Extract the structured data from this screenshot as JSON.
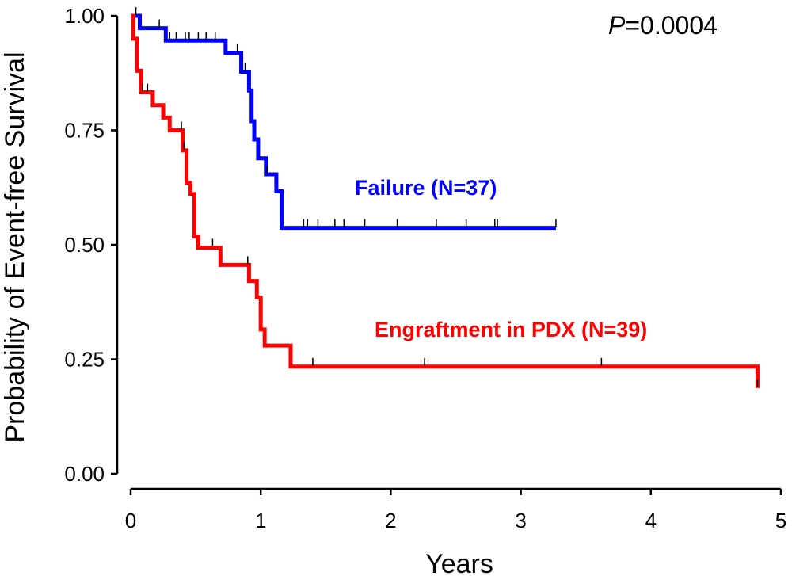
{
  "chart_data": {
    "type": "line",
    "subtype": "kaplan-meier",
    "title": "",
    "xlabel": "Years",
    "ylabel": "Probability of Event-free Survival",
    "xlim": [
      0,
      5
    ],
    "ylim": [
      0,
      1
    ],
    "xticks": [
      0,
      1,
      2,
      3,
      4,
      5
    ],
    "yticks": [
      0.0,
      0.25,
      0.5,
      0.75,
      1.0
    ],
    "xtick_labels": [
      "0",
      "1",
      "2",
      "3",
      "4",
      "5"
    ],
    "ytick_labels": [
      "0.00",
      "0.25",
      "0.50",
      "0.75",
      "1.00"
    ],
    "annotation": {
      "prefix": "P",
      "text": "=0.0004"
    },
    "grid": false,
    "legend": "none",
    "series": [
      {
        "name": "Failure (N=37)",
        "color": "#0000ff",
        "step_x": [
          0,
          0.07,
          0.27,
          0.73,
          0.85,
          0.91,
          0.93,
          0.95,
          0.98,
          1.04,
          1.12,
          1.16,
          3.27
        ],
        "step_y": [
          1.0,
          0.973,
          0.946,
          0.919,
          0.878,
          0.837,
          0.77,
          0.73,
          0.689,
          0.654,
          0.617,
          0.537,
          0.537
        ],
        "censor_x": [
          0.04,
          0.22,
          0.3,
          0.35,
          0.42,
          0.45,
          0.52,
          0.58,
          0.65,
          0.82,
          0.88,
          1.05,
          1.33,
          1.36,
          1.44,
          1.57,
          1.64,
          1.8,
          2.05,
          2.35,
          2.58,
          2.8,
          2.82,
          3.27
        ],
        "end_x": 3.27
      },
      {
        "name": "Engraftment in PDX (N=39)",
        "color": "#ff0000",
        "step_x": [
          0,
          0.02,
          0.05,
          0.08,
          0.17,
          0.25,
          0.3,
          0.4,
          0.43,
          0.46,
          0.49,
          0.52,
          0.57,
          0.69,
          0.91,
          0.97,
          1.0,
          1.03,
          1.23,
          4.82
        ],
        "step_y": [
          1.0,
          0.95,
          0.88,
          0.833,
          0.805,
          0.778,
          0.75,
          0.706,
          0.635,
          0.611,
          0.518,
          0.494,
          0.494,
          0.456,
          0.421,
          0.385,
          0.315,
          0.28,
          0.234,
          0.187
        ],
        "censor_x": [
          0.09,
          0.13,
          0.39,
          0.41,
          0.63,
          0.9,
          1.4,
          2.26,
          3.62,
          4.82
        ],
        "end_x": 4.82
      }
    ]
  }
}
